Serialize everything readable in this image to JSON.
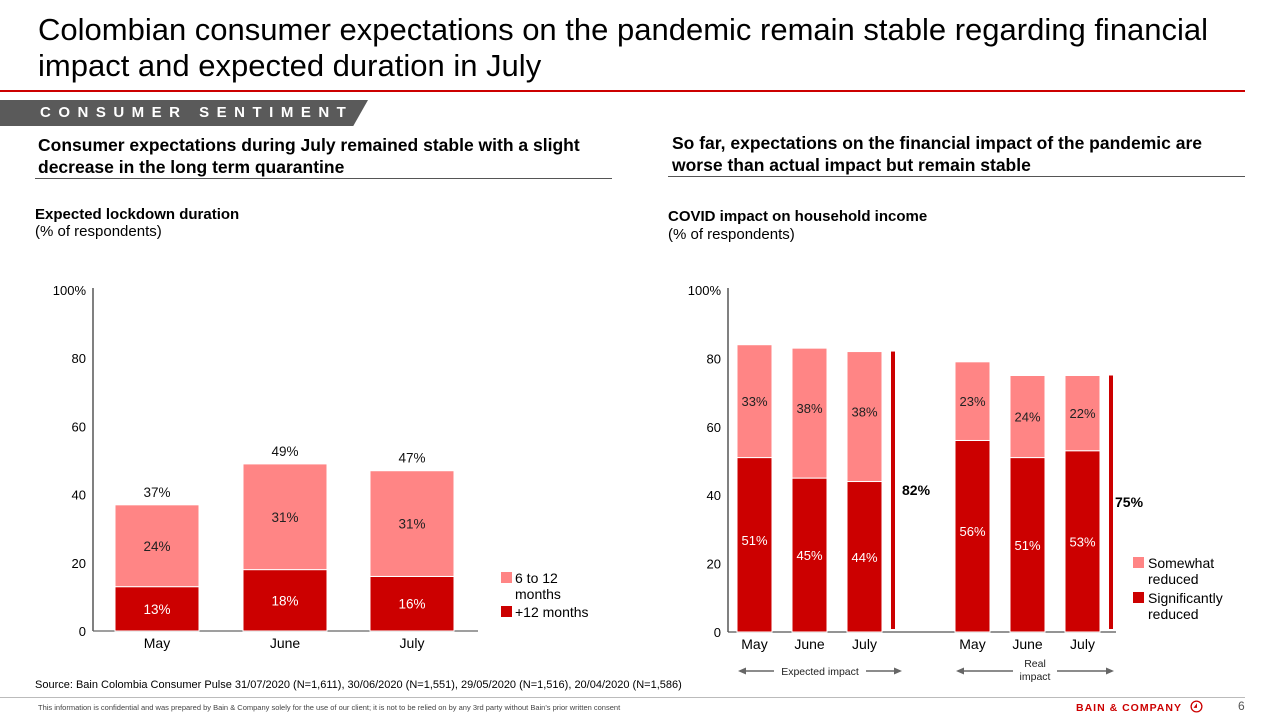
{
  "header": {
    "title": "Colombian consumer expectations on the pandemic remain stable regarding financial impact and expected duration in July",
    "section_tag": "CONSUMER SENTIMENT"
  },
  "left_panel": {
    "subheading": "Consumer expectations during July remained stable with a slight decrease in the long term quarantine",
    "chart_title": "Expected lockdown duration",
    "chart_subtitle": "(% of respondents)"
  },
  "right_panel": {
    "subheading": "So far, expectations on the financial impact of the pandemic are worse than actual impact but remain stable",
    "chart_title": "COVID impact on household income",
    "chart_subtitle": "(% of respondents)"
  },
  "colors": {
    "accent": "#cc0000",
    "light": "#ff8585",
    "dark": "#cc0000"
  },
  "chart_data": [
    {
      "type": "bar",
      "stacked": true,
      "title": "Expected lockdown duration",
      "ylabel": "(% of respondents)",
      "ylim": [
        0,
        100
      ],
      "yticks": [
        "0",
        "20",
        "40",
        "60",
        "80",
        "100%"
      ],
      "categories": [
        "May",
        "June",
        "July"
      ],
      "series": [
        {
          "name": "+12 months",
          "values": [
            13,
            18,
            16
          ],
          "labels": [
            "13%",
            "18%",
            "16%"
          ]
        },
        {
          "name": "6 to 12 months",
          "values": [
            24,
            31,
            31
          ],
          "labels": [
            "24%",
            "31%",
            "31%"
          ]
        }
      ],
      "totals": [
        37,
        49,
        47
      ],
      "total_labels": [
        "37%",
        "49%",
        "47%"
      ],
      "legend": [
        "6 to 12 months",
        "+12 months"
      ],
      "legend_lines": [
        [
          "6 to 12",
          "months"
        ],
        [
          "+12 months"
        ]
      ],
      "legend_position": "right"
    },
    {
      "type": "bar",
      "stacked": true,
      "title": "COVID impact on household income",
      "ylabel": "(% of respondents)",
      "ylim": [
        0,
        100
      ],
      "yticks": [
        "0",
        "20",
        "40",
        "60",
        "80",
        "100%"
      ],
      "groups": [
        {
          "name": "Expected impact",
          "categories": [
            "May",
            "June",
            "July"
          ],
          "series": [
            {
              "name": "Significantly reduced",
              "values": [
                51,
                45,
                44
              ],
              "labels": [
                "51%",
                "45%",
                "44%"
              ]
            },
            {
              "name": "Somewhat reduced",
              "values": [
                33,
                38,
                38
              ],
              "labels": [
                "33%",
                "38%",
                "38%"
              ]
            }
          ],
          "bracket_value": 82,
          "bracket_label": "82%",
          "group_label_lines": [
            "Expected impact"
          ]
        },
        {
          "name": "Real impact",
          "categories": [
            "May",
            "June",
            "July"
          ],
          "series": [
            {
              "name": "Significantly reduced",
              "values": [
                56,
                51,
                53
              ],
              "labels": [
                "56%",
                "51%",
                "53%"
              ]
            },
            {
              "name": "Somewhat reduced",
              "values": [
                23,
                24,
                22
              ],
              "labels": [
                "23%",
                "24%",
                "22%"
              ]
            }
          ],
          "bracket_value": 75,
          "bracket_label": "75%",
          "group_label_lines": [
            "Real",
            "impact"
          ]
        }
      ],
      "legend": [
        "Somewhat reduced",
        "Significantly reduced"
      ],
      "legend_lines": [
        [
          "Somewhat",
          "reduced"
        ],
        [
          "Significantly",
          "reduced"
        ]
      ],
      "legend_position": "right"
    }
  ],
  "footer": {
    "source": "Source: Bain Colombia Consumer Pulse 31/07/2020 (N=1,611), 30/06/2020 (N=1,551), 29/05/2020 (N=1,516), 20/04/2020 (N=1,586)",
    "confidential": "This information is confidential and was prepared by Bain & Company solely for the use of our client; it is not to be relied on by any 3rd party without Bain's prior written consent",
    "logo": "BAIN & COMPANY",
    "page_number": "6"
  }
}
